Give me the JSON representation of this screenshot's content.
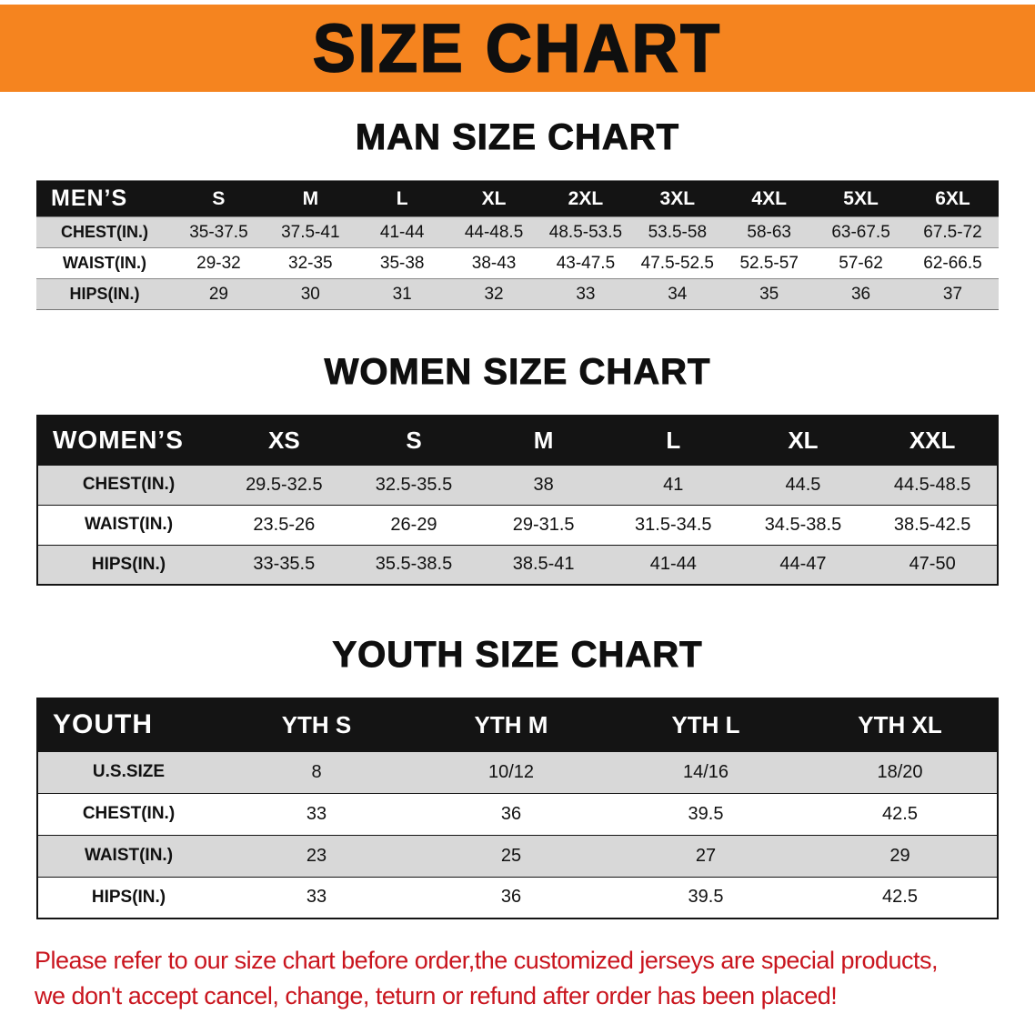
{
  "banner": {
    "title": "SIZE CHART",
    "bg_color": "#F5841F"
  },
  "men": {
    "heading": "MAN SIZE CHART",
    "table": {
      "corner_label": "MEN’S",
      "columns": [
        "S",
        "M",
        "L",
        "XL",
        "2XL",
        "3XL",
        "4XL",
        "5XL",
        "6XL"
      ],
      "rows": [
        {
          "label": "CHEST(IN.)",
          "values": [
            "35-37.5",
            "37.5-41",
            "41-44",
            "44-48.5",
            "48.5-53.5",
            "53.5-58",
            "58-63",
            "63-67.5",
            "67.5-72"
          ]
        },
        {
          "label": "WAIST(IN.)",
          "values": [
            "29-32",
            "32-35",
            "35-38",
            "38-43",
            "43-47.5",
            "47.5-52.5",
            "52.5-57",
            "57-62",
            "62-66.5"
          ]
        },
        {
          "label": "HIPS(IN.)",
          "values": [
            "29",
            "30",
            "31",
            "32",
            "33",
            "34",
            "35",
            "36",
            "37"
          ]
        }
      ]
    }
  },
  "women": {
    "heading": "WOMEN SIZE CHART",
    "table": {
      "corner_label": "WOMEN’S",
      "columns": [
        "XS",
        "S",
        "M",
        "L",
        "XL",
        "XXL"
      ],
      "rows": [
        {
          "label": "CHEST(IN.)",
          "values": [
            "29.5-32.5",
            "32.5-35.5",
            "38",
            "41",
            "44.5",
            "44.5-48.5"
          ]
        },
        {
          "label": "WAIST(IN.)",
          "values": [
            "23.5-26",
            "26-29",
            "29-31.5",
            "31.5-34.5",
            "34.5-38.5",
            "38.5-42.5"
          ]
        },
        {
          "label": "HIPS(IN.)",
          "values": [
            "33-35.5",
            "35.5-38.5",
            "38.5-41",
            "41-44",
            "44-47",
            "47-50"
          ]
        }
      ]
    }
  },
  "youth": {
    "heading": "YOUTH SIZE CHART",
    "table": {
      "corner_label": "YOUTH",
      "columns": [
        "YTH S",
        "YTH M",
        "YTH L",
        "YTH XL"
      ],
      "rows": [
        {
          "label": "U.S.SIZE",
          "values": [
            "8",
            "10/12",
            "14/16",
            "18/20"
          ]
        },
        {
          "label": "CHEST(IN.)",
          "values": [
            "33",
            "36",
            "39.5",
            "42.5"
          ]
        },
        {
          "label": "WAIST(IN.)",
          "values": [
            "23",
            "25",
            "27",
            "29"
          ]
        },
        {
          "label": "HIPS(IN.)",
          "values": [
            "33",
            "36",
            "39.5",
            "42.5"
          ]
        }
      ]
    }
  },
  "notice": {
    "line1": "Please refer to our size chart before order,the customized jerseys are special products,",
    "line2": "we don't accept cancel, change, teturn or refund after order has been placed!"
  },
  "colors": {
    "banner_orange": "#F5841F",
    "header_black": "#141414",
    "row_gray": "#D8D8D8",
    "notice_red": "#C9151E"
  }
}
